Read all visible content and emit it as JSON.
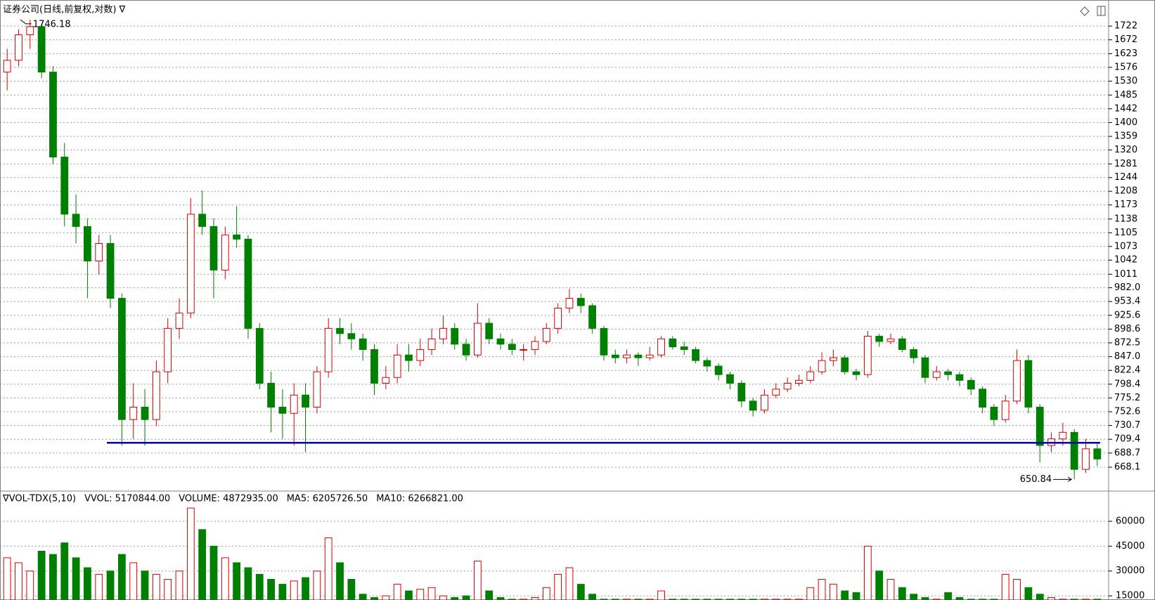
{
  "chart_data": {
    "type": "candlestick",
    "title": "证券公司(日线,前复权,对数) ∇",
    "log_scale": true,
    "grid": true,
    "up_color": "#e00000",
    "down_color": "#008000",
    "ylim": [
      634.7,
      1767
    ],
    "yticks": [
      1722,
      1672,
      1623,
      1576,
      1530,
      1485,
      1442,
      1400,
      1359,
      1320,
      1281,
      1244,
      1208,
      1173,
      1138,
      1105,
      1073,
      1042,
      1011,
      {
        "value": 982,
        "label": "982.0"
      },
      953.4,
      925.6,
      898.6,
      872.5,
      {
        "value": 847,
        "label": "847.0"
      },
      822.4,
      798.4,
      775.2,
      752.6,
      730.7,
      709.4,
      688.7,
      668.1
    ],
    "support_line": 704,
    "support_color": "#0000c0",
    "ohlc": [
      [
        1560,
        1640,
        1500,
        1600
      ],
      [
        1600,
        1710,
        1580,
        1690
      ],
      [
        1690,
        1746.18,
        1640,
        1720
      ],
      [
        1720,
        1730,
        1540,
        1560
      ],
      [
        1560,
        1580,
        1280,
        1300
      ],
      [
        1300,
        1340,
        1120,
        1150
      ],
      [
        1150,
        1200,
        1080,
        1120
      ],
      [
        1120,
        1140,
        960,
        1040
      ],
      [
        1040,
        1100,
        1010,
        1080
      ],
      [
        1080,
        1100,
        940,
        960
      ],
      [
        960,
        970,
        700,
        740
      ],
      [
        740,
        800,
        710,
        760
      ],
      [
        760,
        790,
        700,
        740
      ],
      [
        740,
        840,
        730,
        820
      ],
      [
        820,
        920,
        800,
        900
      ],
      [
        900,
        960,
        880,
        930
      ],
      [
        930,
        1190,
        920,
        1150
      ],
      [
        1150,
        1210,
        1100,
        1120
      ],
      [
        1120,
        1140,
        960,
        1020
      ],
      [
        1020,
        1120,
        1000,
        1100
      ],
      [
        1100,
        1170,
        1070,
        1090
      ],
      [
        1090,
        1100,
        880,
        900
      ],
      [
        900,
        910,
        790,
        800
      ],
      [
        800,
        820,
        720,
        760
      ],
      [
        760,
        790,
        710,
        750
      ],
      [
        750,
        800,
        700,
        780
      ],
      [
        780,
        800,
        690,
        760
      ],
      [
        760,
        830,
        750,
        820
      ],
      [
        820,
        920,
        810,
        900
      ],
      [
        900,
        920,
        870,
        890
      ],
      [
        890,
        910,
        860,
        880
      ],
      [
        880,
        890,
        840,
        860
      ],
      [
        860,
        870,
        780,
        800
      ],
      [
        800,
        830,
        790,
        810
      ],
      [
        810,
        870,
        800,
        850
      ],
      [
        850,
        870,
        820,
        840
      ],
      [
        840,
        880,
        830,
        860
      ],
      [
        860,
        900,
        850,
        880
      ],
      [
        880,
        925,
        870,
        900
      ],
      [
        900,
        910,
        860,
        870
      ],
      [
        870,
        880,
        840,
        850
      ],
      [
        850,
        950,
        845,
        910
      ],
      [
        910,
        920,
        870,
        880
      ],
      [
        880,
        890,
        860,
        870
      ],
      [
        870,
        880,
        850,
        860
      ],
      [
        860,
        870,
        840,
        860
      ],
      [
        860,
        885,
        850,
        875
      ],
      [
        875,
        910,
        870,
        900
      ],
      [
        900,
        950,
        890,
        940
      ],
      [
        940,
        980,
        930,
        960
      ],
      [
        960,
        970,
        930,
        945
      ],
      [
        945,
        950,
        890,
        900
      ],
      [
        900,
        905,
        840,
        850
      ],
      [
        850,
        860,
        835,
        845
      ],
      [
        845,
        860,
        835,
        850
      ],
      [
        850,
        855,
        830,
        845
      ],
      [
        845,
        865,
        840,
        850
      ],
      [
        850,
        885,
        845,
        880
      ],
      [
        880,
        885,
        860,
        865
      ],
      [
        865,
        875,
        850,
        860
      ],
      [
        860,
        865,
        835,
        840
      ],
      [
        840,
        845,
        820,
        830
      ],
      [
        830,
        835,
        805,
        815
      ],
      [
        815,
        820,
        790,
        800
      ],
      [
        800,
        805,
        760,
        770
      ],
      [
        770,
        775,
        745,
        755
      ],
      [
        755,
        790,
        750,
        780
      ],
      [
        780,
        800,
        775,
        790
      ],
      [
        790,
        810,
        785,
        800
      ],
      [
        800,
        815,
        795,
        805
      ],
      [
        805,
        830,
        800,
        820
      ],
      [
        820,
        855,
        815,
        840
      ],
      [
        840,
        860,
        830,
        845
      ],
      [
        845,
        850,
        815,
        820
      ],
      [
        820,
        825,
        805,
        815
      ],
      [
        815,
        895,
        810,
        885
      ],
      [
        885,
        890,
        865,
        875
      ],
      [
        875,
        890,
        870,
        880
      ],
      [
        880,
        885,
        855,
        860
      ],
      [
        860,
        865,
        835,
        845
      ],
      [
        845,
        850,
        800,
        810
      ],
      [
        810,
        830,
        805,
        820
      ],
      [
        820,
        825,
        805,
        815
      ],
      [
        815,
        820,
        795,
        805
      ],
      [
        805,
        810,
        780,
        790
      ],
      [
        790,
        795,
        750,
        760
      ],
      [
        760,
        765,
        730,
        740
      ],
      [
        740,
        780,
        735,
        770
      ],
      [
        770,
        860,
        765,
        840
      ],
      [
        840,
        850,
        750,
        760
      ],
      [
        760,
        765,
        675,
        700
      ],
      [
        700,
        720,
        690,
        710
      ],
      [
        710,
        735,
        700,
        720
      ],
      [
        720,
        725,
        650.84,
        665
      ],
      [
        665,
        710,
        660,
        695
      ],
      [
        695,
        705,
        670,
        680
      ]
    ],
    "volume": {
      "header": [
        "∇VOL-TDX(5,10)",
        "VVOL: 5170844.00",
        "VOLUME: 4872935.00",
        "MA5: 6205726.50",
        "MA10: 6266821.00"
      ],
      "header_colors": [
        "#000000",
        "#000080",
        "#ff00ff",
        "#ff00ff",
        "#808080"
      ],
      "ylim": [
        12500,
        72300
      ],
      "yticks": [
        60000,
        45000,
        30000,
        15000
      ],
      "values": [
        38000,
        35000,
        30000,
        42000,
        40000,
        47000,
        38000,
        32000,
        28000,
        30000,
        40000,
        35000,
        30000,
        28000,
        25000,
        30000,
        68000,
        55000,
        45000,
        38000,
        35000,
        32000,
        28000,
        25000,
        22000,
        24000,
        26000,
        30000,
        50000,
        35000,
        25000,
        16000,
        14000,
        15000,
        22000,
        18000,
        19000,
        20000,
        15000,
        14000,
        15000,
        36000,
        18000,
        14000,
        13000,
        13000,
        14000,
        20000,
        28000,
        32000,
        22000,
        16000,
        13000,
        13000,
        13000,
        13000,
        13000,
        18000,
        13000,
        13000,
        13000,
        13000,
        13000,
        13000,
        13000,
        13000,
        13000,
        13000,
        13000,
        13000,
        20000,
        25000,
        22000,
        18000,
        17000,
        45000,
        30000,
        25000,
        20000,
        16000,
        14000,
        13000,
        17000,
        14000,
        13000,
        13000,
        13000,
        28000,
        25000,
        20000,
        16000,
        14000,
        13000,
        13000,
        13000,
        13000
      ]
    }
  }
}
